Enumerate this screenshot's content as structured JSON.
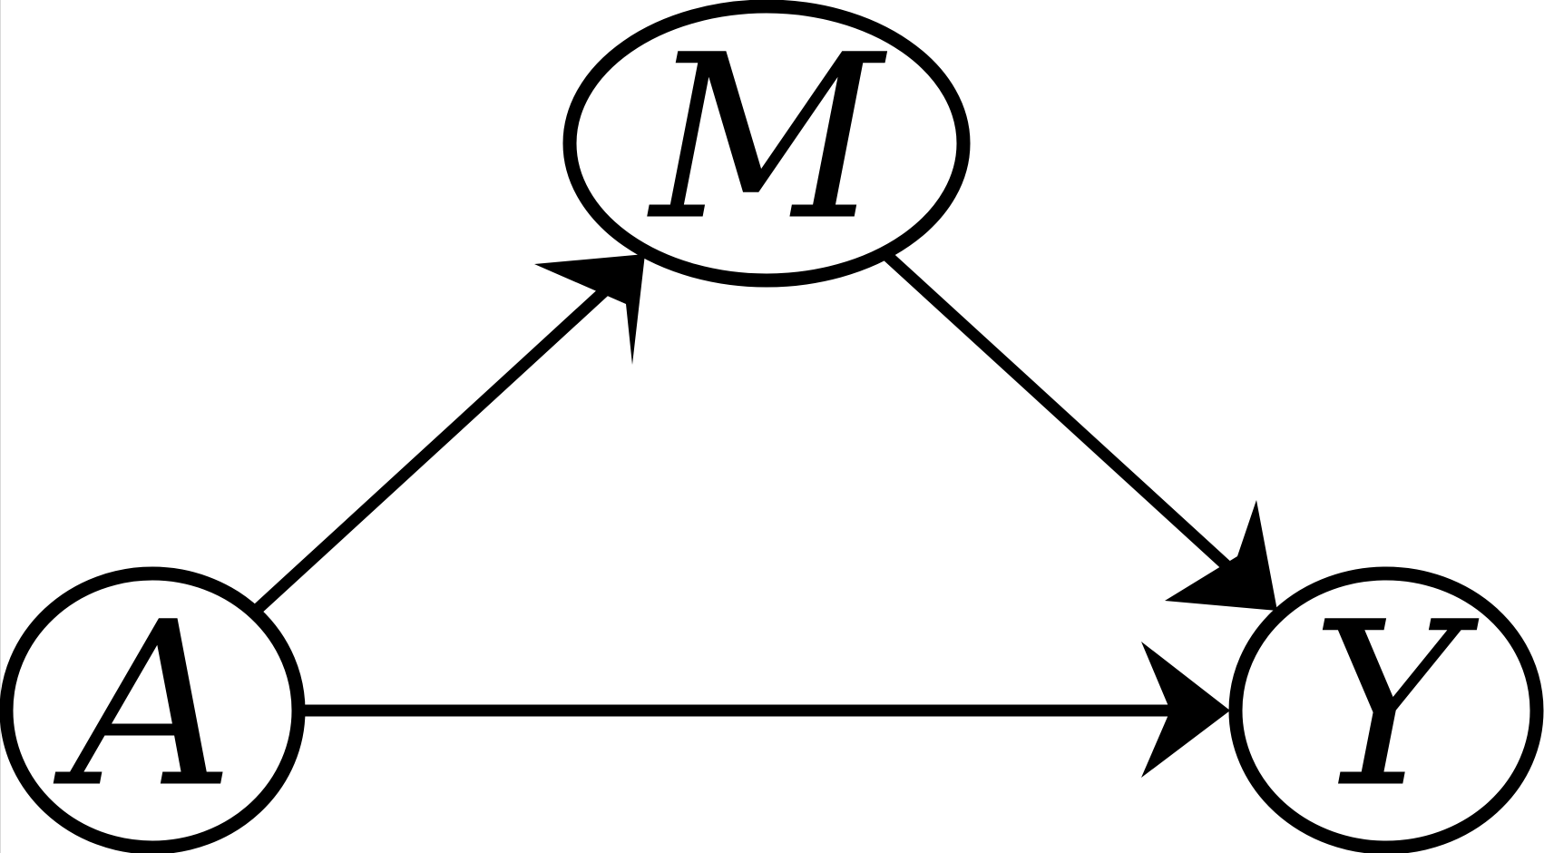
{
  "diagram": {
    "type": "directed-graph",
    "nodes": [
      {
        "id": "A",
        "label": "A"
      },
      {
        "id": "M",
        "label": "M"
      },
      {
        "id": "Y",
        "label": "Y"
      }
    ],
    "edges": [
      {
        "from": "A",
        "to": "M"
      },
      {
        "from": "M",
        "to": "Y"
      },
      {
        "from": "A",
        "to": "Y"
      }
    ]
  },
  "colors": {
    "stroke": "#000000",
    "background": "#ffffff"
  }
}
